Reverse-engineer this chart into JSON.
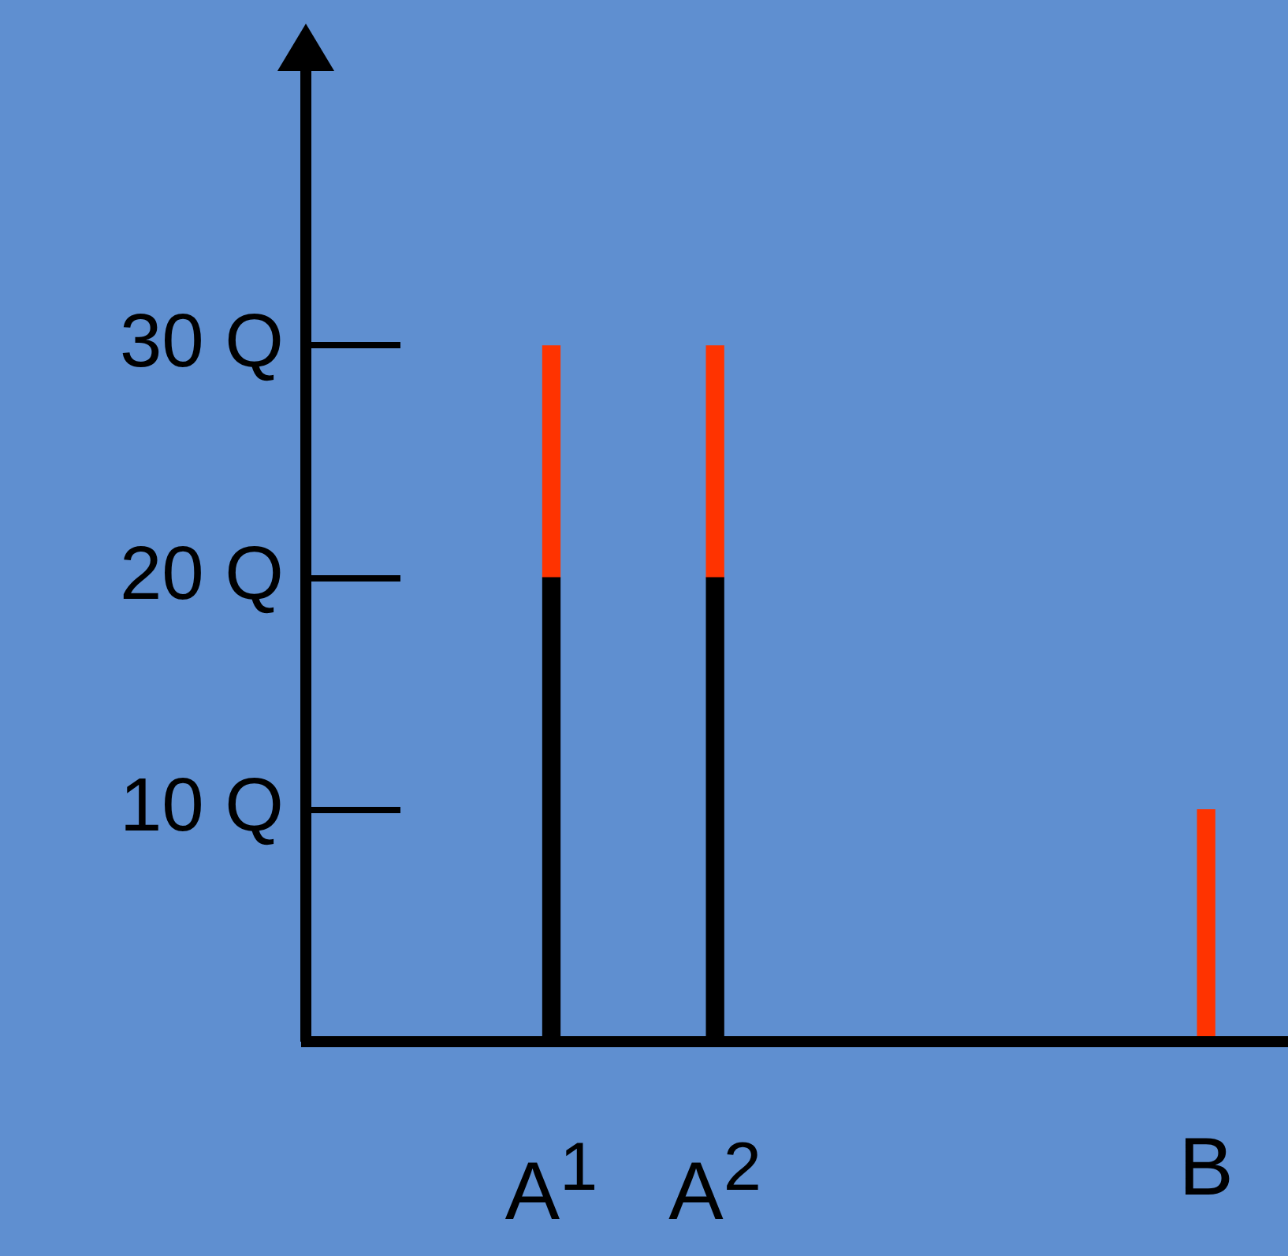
{
  "chart_data": {
    "type": "bar",
    "stacked": true,
    "categories": [
      null,
      "A$^{1}$",
      "A$^{2}$",
      null,
      null,
      "B"
    ],
    "series": [
      {
        "color": "#000000",
        "values": [
          null,
          20,
          20,
          null,
          null,
          null
        ]
      },
      {
        "color": "#ff3300",
        "values": [
          null,
          10,
          10,
          null,
          null,
          10
        ]
      }
    ],
    "ylim": [
      0,
      42
    ],
    "yticks": [
      {
        "value": 10,
        "label": "10 Q"
      },
      {
        "value": 20,
        "label": "20 Q"
      },
      {
        "value": 30,
        "label": "30 Q"
      }
    ],
    "grid": false,
    "legend": false
  }
}
